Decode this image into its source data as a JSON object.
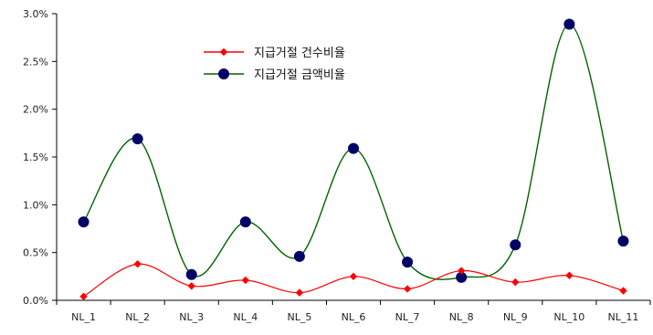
{
  "chart_data": {
    "type": "line",
    "categories": [
      "NL_1",
      "NL_2",
      "NL_3",
      "NL_4",
      "NL_5",
      "NL_6",
      "NL_7",
      "NL_8",
      "NL_9",
      "NL_10",
      "NL_11"
    ],
    "series": [
      {
        "name": "지급거절 건수비율",
        "values": [
          0.04,
          0.38,
          0.15,
          0.21,
          0.08,
          0.25,
          0.12,
          0.31,
          0.19,
          0.26,
          0.1
        ],
        "color": "#ff0000",
        "marker": "diamond"
      },
      {
        "name": "지급거절 금액비율",
        "values": [
          0.82,
          1.69,
          0.27,
          0.82,
          0.46,
          1.59,
          0.4,
          0.24,
          0.58,
          2.89,
          0.62
        ],
        "color": "#006400",
        "marker_color": "#000066",
        "marker": "circle"
      }
    ],
    "yticks": [
      "0.0%",
      "0.5%",
      "1.0%",
      "1.5%",
      "2.0%",
      "2.5%",
      "3.0%"
    ],
    "ylim": [
      0,
      3.0
    ],
    "grid": false,
    "legend_position": "top-center"
  }
}
